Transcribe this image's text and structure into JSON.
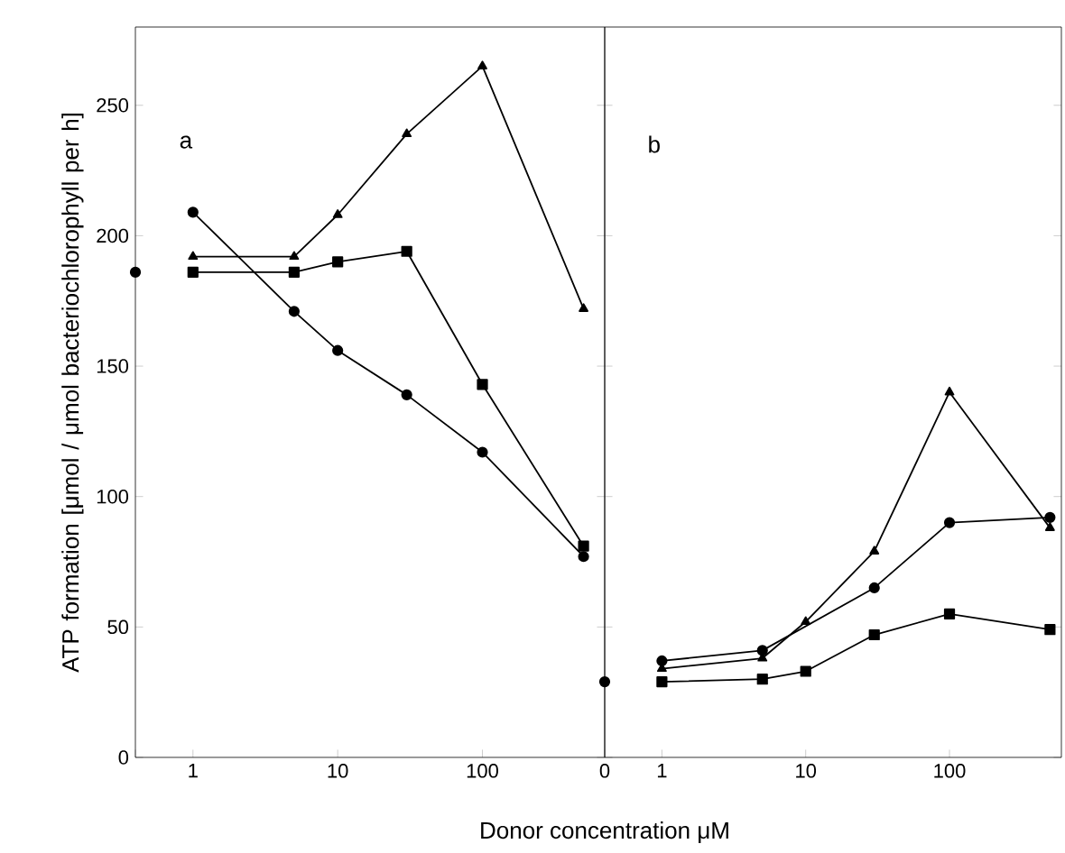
{
  "chart_data": [
    {
      "type": "line",
      "ylabel": "ATP formation [μmol / μmol bacteriochlorophyll per h]",
      "xlabel": "Donor concentration μM",
      "annotations": [
        "a"
      ],
      "log": "x",
      "xlim": [
        0.4,
        700
      ],
      "xticks": [
        {
          "value": 0.4,
          "label": null
        },
        1,
        10,
        100
      ],
      "ylim": [
        0,
        280
      ],
      "yticks": [
        0,
        50,
        100,
        150,
        200,
        250
      ],
      "line_style": "solid",
      "grid": false,
      "series": [
        {
          "type": "scatter",
          "color": "#000000",
          "marker": "circle",
          "x": [
            0.4
          ],
          "values": [
            186
          ]
        },
        {
          "color": "#000000",
          "marker": "triangle",
          "x": [
            1,
            5,
            10,
            30,
            100,
            500
          ],
          "values": [
            192,
            192,
            208,
            239,
            265,
            172
          ]
        },
        {
          "color": "#000000",
          "marker": "square",
          "x": [
            1,
            5,
            10,
            30,
            100,
            500
          ],
          "values": [
            186,
            186,
            190,
            194,
            143,
            81
          ]
        },
        {
          "color": "#000000",
          "marker": "circle",
          "x": [
            1,
            5,
            10,
            30,
            100,
            500
          ],
          "values": [
            209,
            171,
            156,
            139,
            117,
            77
          ]
        }
      ]
    },
    {
      "type": "line",
      "annotations": [
        "b"
      ],
      "log": "x",
      "xlim": [
        0.4,
        600
      ],
      "xticks": [
        {
          "value": 0.4,
          "label": "0"
        },
        1,
        10,
        100
      ],
      "ylim": [
        0,
        280
      ],
      "yticks": [
        0,
        50,
        100,
        150,
        200,
        250
      ],
      "tick_labels": "x",
      "line_style": "solid",
      "grid": false,
      "series": [
        {
          "type": "scatter",
          "color": "#000000",
          "marker": "circle",
          "x": [
            0.4
          ],
          "values": [
            29
          ]
        },
        {
          "color": "#000000",
          "marker": "triangle",
          "x": [
            1,
            5,
            10,
            30,
            100,
            500
          ],
          "values": [
            34,
            38,
            52,
            79,
            140,
            88
          ]
        },
        {
          "color": "#000000",
          "marker": "square",
          "x": [
            1,
            5,
            10,
            30,
            100,
            500
          ],
          "values": [
            29,
            30,
            33,
            47,
            55,
            49
          ]
        },
        {
          "color": "#000000",
          "marker": "circle",
          "x": [
            1,
            5,
            30,
            100,
            500
          ],
          "values": [
            37,
            41,
            65,
            90,
            92
          ]
        }
      ]
    }
  ]
}
